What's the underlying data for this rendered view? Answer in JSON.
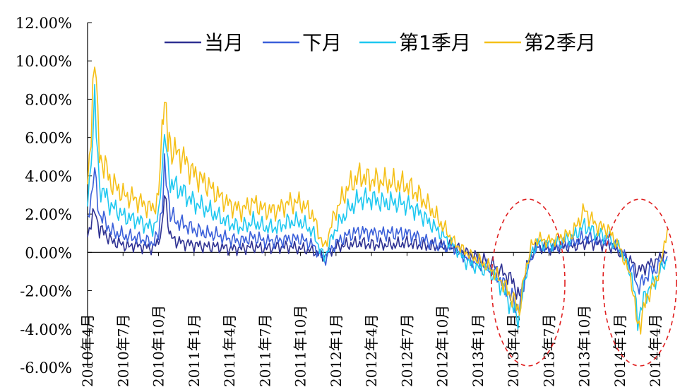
{
  "chart_data": {
    "type": "line",
    "title": "",
    "xlabel": "",
    "ylabel": "",
    "ylim": [
      -6,
      12
    ],
    "y_ticks": [
      "12.00%",
      "10.00%",
      "8.00%",
      "6.00%",
      "4.00%",
      "2.00%",
      "0.00%",
      "-2.00%",
      "-4.00%",
      "-6.00%"
    ],
    "x_ticks": [
      "2010年4月",
      "2010年7月",
      "2010年10月",
      "2011年1月",
      "2011年4月",
      "2011年7月",
      "2011年10月",
      "2012年1月",
      "2012年4月",
      "2012年7月",
      "2012年10月",
      "2013年1月",
      "2013年4月",
      "2013年7月",
      "2013年10月",
      "2014年1月",
      "2014年4月"
    ],
    "x_unit": "month index from 2010-04",
    "legend_position": "top-center",
    "grid": false,
    "series": [
      {
        "name": "当月",
        "color": "#2e3192",
        "points": [
          [
            0,
            0.8
          ],
          [
            0.3,
            1.5
          ],
          [
            0.6,
            2.4
          ],
          [
            1.0,
            1.2
          ],
          [
            1.5,
            1.0
          ],
          [
            2,
            0.6
          ],
          [
            2.5,
            0.5
          ],
          [
            3,
            0.4
          ],
          [
            3.5,
            0.3
          ],
          [
            4,
            0.4
          ],
          [
            4.5,
            0.3
          ],
          [
            5,
            0.3
          ],
          [
            5.5,
            0.2
          ],
          [
            6,
            0.6
          ],
          [
            6.3,
            1.5
          ],
          [
            6.5,
            3.0
          ],
          [
            6.8,
            1.5
          ],
          [
            7,
            0.8
          ],
          [
            7.5,
            0.6
          ],
          [
            8,
            0.5
          ],
          [
            9,
            0.4
          ],
          [
            10,
            0.3
          ],
          [
            11,
            0.3
          ],
          [
            12,
            0.2
          ],
          [
            13,
            0.2
          ],
          [
            14,
            0.3
          ],
          [
            15,
            0.2
          ],
          [
            16,
            0.3
          ],
          [
            17,
            0.3
          ],
          [
            18,
            0.2
          ],
          [
            19,
            0.1
          ],
          [
            20,
            -0.2
          ],
          [
            21,
            0.3
          ],
          [
            22,
            0.4
          ],
          [
            23,
            0.5
          ],
          [
            24,
            0.4
          ],
          [
            25,
            0.4
          ],
          [
            26,
            0.4
          ],
          [
            27,
            0.5
          ],
          [
            28,
            0.4
          ],
          [
            29,
            0.3
          ],
          [
            30,
            0.3
          ],
          [
            31,
            0.3
          ],
          [
            32,
            0.0
          ],
          [
            33,
            -0.3
          ],
          [
            34,
            -0.5
          ],
          [
            35,
            -1.0
          ],
          [
            36,
            -1.5
          ],
          [
            36.5,
            -2.5
          ],
          [
            37,
            -1.0
          ],
          [
            37.5,
            -0.2
          ],
          [
            38,
            0.3
          ],
          [
            39,
            0.2
          ],
          [
            40,
            0.3
          ],
          [
            41,
            0.3
          ],
          [
            42,
            0.5
          ],
          [
            43,
            0.5
          ],
          [
            44,
            0.4
          ],
          [
            45,
            0.0
          ],
          [
            46,
            -0.5
          ],
          [
            46.5,
            -1.0
          ],
          [
            47,
            -0.8
          ],
          [
            47.5,
            -0.6
          ],
          [
            48,
            -0.5
          ],
          [
            48.5,
            -0.2
          ],
          [
            49,
            0.0
          ]
        ]
      },
      {
        "name": "下月",
        "color": "#3a5fd9",
        "points": [
          [
            0,
            1.5
          ],
          [
            0.3,
            2.5
          ],
          [
            0.6,
            4.2
          ],
          [
            1.0,
            2.0
          ],
          [
            1.5,
            1.6
          ],
          [
            2,
            1.1
          ],
          [
            2.5,
            1.0
          ],
          [
            3,
            0.9
          ],
          [
            3.5,
            0.8
          ],
          [
            4,
            0.8
          ],
          [
            4.5,
            0.7
          ],
          [
            5,
            0.6
          ],
          [
            5.5,
            0.5
          ],
          [
            6,
            0.9
          ],
          [
            6.3,
            2.5
          ],
          [
            6.5,
            4.3
          ],
          [
            6.8,
            2.8
          ],
          [
            7,
            2.0
          ],
          [
            7.5,
            1.6
          ],
          [
            8,
            1.5
          ],
          [
            9,
            1.2
          ],
          [
            10,
            1.0
          ],
          [
            11,
            0.9
          ],
          [
            12,
            0.7
          ],
          [
            13,
            0.6
          ],
          [
            14,
            0.8
          ],
          [
            15,
            0.6
          ],
          [
            16,
            0.6
          ],
          [
            17,
            0.7
          ],
          [
            18,
            0.7
          ],
          [
            19,
            0.4
          ],
          [
            20,
            -0.4
          ],
          [
            21,
            0.5
          ],
          [
            22,
            0.9
          ],
          [
            23,
            1.1
          ],
          [
            24,
            1.0
          ],
          [
            25,
            1.0
          ],
          [
            26,
            1.0
          ],
          [
            27,
            1.0
          ],
          [
            28,
            0.8
          ],
          [
            29,
            0.5
          ],
          [
            30,
            0.3
          ],
          [
            31,
            0.2
          ],
          [
            32,
            -0.3
          ],
          [
            33,
            -0.6
          ],
          [
            34,
            -0.8
          ],
          [
            35,
            -1.5
          ],
          [
            36,
            -2.5
          ],
          [
            36.5,
            -3.0
          ],
          [
            37,
            -1.2
          ],
          [
            37.5,
            -0.3
          ],
          [
            38,
            0.3
          ],
          [
            39,
            0.2
          ],
          [
            40,
            0.4
          ],
          [
            41,
            0.5
          ],
          [
            42,
            0.8
          ],
          [
            43,
            0.7
          ],
          [
            44,
            0.6
          ],
          [
            45,
            0.1
          ],
          [
            46,
            -0.8
          ],
          [
            46.5,
            -1.8
          ],
          [
            47,
            -1.5
          ],
          [
            47.5,
            -1.0
          ],
          [
            48,
            -0.9
          ],
          [
            48.5,
            -0.5
          ],
          [
            49,
            -0.2
          ]
        ]
      },
      {
        "name": "第1季月",
        "color": "#1ec8f0",
        "points": [
          [
            0,
            2.5
          ],
          [
            0.3,
            4.2
          ],
          [
            0.6,
            7.6
          ],
          [
            1.0,
            3.5
          ],
          [
            1.5,
            3.0
          ],
          [
            2,
            2.4
          ],
          [
            2.5,
            2.2
          ],
          [
            3,
            1.9
          ],
          [
            3.5,
            1.8
          ],
          [
            4,
            1.7
          ],
          [
            4.5,
            1.6
          ],
          [
            5,
            1.4
          ],
          [
            5.5,
            1.3
          ],
          [
            6,
            1.8
          ],
          [
            6.3,
            4.0
          ],
          [
            6.5,
            6.3
          ],
          [
            6.8,
            4.5
          ],
          [
            7,
            3.6
          ],
          [
            7.5,
            3.4
          ],
          [
            8,
            3.2
          ],
          [
            9,
            2.6
          ],
          [
            10,
            2.3
          ],
          [
            11,
            1.9
          ],
          [
            12,
            1.5
          ],
          [
            13,
            1.3
          ],
          [
            14,
            1.6
          ],
          [
            15,
            1.3
          ],
          [
            16,
            1.3
          ],
          [
            17,
            1.6
          ],
          [
            18,
            1.6
          ],
          [
            19,
            1.1
          ],
          [
            20,
            -0.3
          ],
          [
            21,
            1.3
          ],
          [
            22,
            2.2
          ],
          [
            23,
            2.8
          ],
          [
            24,
            2.8
          ],
          [
            25,
            2.6
          ],
          [
            26,
            2.6
          ],
          [
            27,
            2.5
          ],
          [
            28,
            2.1
          ],
          [
            29,
            1.5
          ],
          [
            30,
            0.9
          ],
          [
            31,
            0.3
          ],
          [
            32,
            -0.5
          ],
          [
            33,
            -0.8
          ],
          [
            34,
            -1.0
          ],
          [
            35,
            -1.8
          ],
          [
            36,
            -3.0
          ],
          [
            36.5,
            -3.4
          ],
          [
            37,
            -1.2
          ],
          [
            37.5,
            -0.1
          ],
          [
            38,
            0.5
          ],
          [
            39,
            0.4
          ],
          [
            40,
            0.6
          ],
          [
            41,
            0.8
          ],
          [
            42,
            1.4
          ],
          [
            43,
            1.0
          ],
          [
            44,
            0.8
          ],
          [
            45,
            0.2
          ],
          [
            46,
            -1.2
          ],
          [
            46.5,
            -3.5
          ],
          [
            47,
            -2.5
          ],
          [
            47.5,
            -1.8
          ],
          [
            48,
            -1.5
          ],
          [
            48.5,
            -0.8
          ],
          [
            49,
            -0.4
          ]
        ]
      },
      {
        "name": "第2季月",
        "color": "#f5c018",
        "points": [
          [
            0,
            3.5
          ],
          [
            0.3,
            6.0
          ],
          [
            0.6,
            10.3
          ],
          [
            1.0,
            5.0
          ],
          [
            1.5,
            4.5
          ],
          [
            2,
            3.6
          ],
          [
            2.5,
            3.4
          ],
          [
            3,
            3.0
          ],
          [
            3.5,
            2.9
          ],
          [
            4,
            2.8
          ],
          [
            4.5,
            2.6
          ],
          [
            5,
            2.4
          ],
          [
            5.5,
            2.3
          ],
          [
            6,
            2.8
          ],
          [
            6.3,
            6.0
          ],
          [
            6.5,
            8.7
          ],
          [
            6.8,
            6.2
          ],
          [
            7,
            5.5
          ],
          [
            7.5,
            5.2
          ],
          [
            8,
            5.0
          ],
          [
            9,
            4.1
          ],
          [
            10,
            3.6
          ],
          [
            11,
            3.0
          ],
          [
            12,
            2.5
          ],
          [
            13,
            2.2
          ],
          [
            14,
            2.6
          ],
          [
            15,
            2.2
          ],
          [
            16,
            2.2
          ],
          [
            17,
            2.6
          ],
          [
            18,
            2.6
          ],
          [
            19,
            2.0
          ],
          [
            20,
            0.2
          ],
          [
            21,
            2.2
          ],
          [
            22,
            3.4
          ],
          [
            23,
            4.0
          ],
          [
            24,
            3.8
          ],
          [
            25,
            3.7
          ],
          [
            26,
            3.6
          ],
          [
            27,
            3.5
          ],
          [
            28,
            3.0
          ],
          [
            29,
            2.3
          ],
          [
            30,
            1.4
          ],
          [
            31,
            0.5
          ],
          [
            32,
            0.0
          ],
          [
            33,
            -0.4
          ],
          [
            34,
            -0.8
          ],
          [
            35,
            -1.5
          ],
          [
            36,
            -2.5
          ],
          [
            36.5,
            -3.0
          ],
          [
            37,
            -1.0
          ],
          [
            37.5,
            0.3
          ],
          [
            38,
            0.7
          ],
          [
            39,
            0.6
          ],
          [
            40,
            0.8
          ],
          [
            41,
            1.0
          ],
          [
            42,
            2.2
          ],
          [
            43,
            1.4
          ],
          [
            44,
            1.2
          ],
          [
            45,
            0.2
          ],
          [
            46,
            -1.5
          ],
          [
            46.5,
            -4.0
          ],
          [
            47,
            -3.0
          ],
          [
            47.5,
            -2.0
          ],
          [
            48,
            -1.6
          ],
          [
            48.5,
            -0.5
          ],
          [
            49,
            1.2
          ]
        ]
      }
    ]
  }
}
